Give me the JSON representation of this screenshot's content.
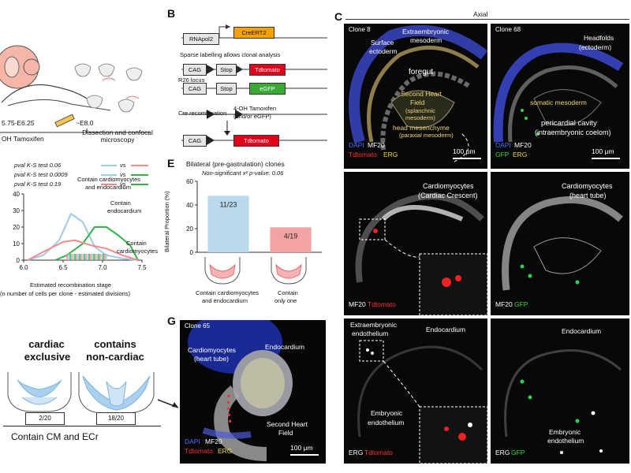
{
  "panelA": {
    "stage_range": "5.75-E6.25",
    "tamoxifen": "OH Tamoxifen",
    "e8": "~E8.0",
    "dissection": "Dissection and confocal microscopy",
    "pvals": [
      {
        "text": "pval K-S test 0.06",
        "c1": "#9ccbe9",
        "c2": "#f28b8b"
      },
      {
        "text": "pval K-S test 0.0009",
        "c1": "#9ccbe9",
        "c2": "#31b34a"
      },
      {
        "text": "pval K-S test 0.19",
        "c1": "#f28b8b",
        "c2": "#31b34a"
      }
    ],
    "vs": "vs"
  },
  "panelA_chart": {
    "chart_data": {
      "type": "line",
      "xlabel": "Estimated recombination stage",
      "xlabel2": "(n number of cells per clone - estimated divisions)",
      "xticks": [
        "6.0",
        "6.5",
        "7.0",
        "7.5"
      ],
      "xlim": [
        6.0,
        7.5
      ],
      "yticks": [
        "0",
        "10",
        "20",
        "30",
        "40"
      ],
      "ylim": [
        0,
        40
      ],
      "series": [
        {
          "name": "Contain cardiomyocytes and endocardium",
          "color": "#9ccbe9",
          "x": [
            6.05,
            6.25,
            6.45,
            6.6,
            6.75,
            6.9,
            7.05,
            7.25,
            7.45
          ],
          "y": [
            0,
            3,
            12,
            28,
            23,
            8,
            3,
            1,
            0
          ]
        },
        {
          "name": "Contain endocardium",
          "color": "#31b34a",
          "x": [
            6.4,
            6.55,
            6.75,
            6.9,
            7.05,
            7.2,
            7.35,
            7.45
          ],
          "y": [
            0,
            3,
            10,
            20,
            20,
            15,
            9,
            0
          ]
        },
        {
          "name": "Contain cardiomyocytes",
          "color": "#f28b8b",
          "x": [
            6.05,
            6.25,
            6.5,
            6.65,
            6.85,
            7.05,
            7.25,
            7.45
          ],
          "y": [
            0,
            5,
            11,
            12,
            9,
            7,
            3,
            0
          ]
        }
      ]
    },
    "ann1": "Contain cardiomyocytes",
    "ann1b": "and endocardium",
    "ann2": "Contain",
    "ann2b": "endocardium",
    "ann3": "Contain",
    "ann3b": "cardiomyocytes"
  },
  "panelBottomLeft": {
    "g1_title1": "cardiac",
    "g1_title2": "exclusive",
    "g2_title1": "contains",
    "g2_title2": "non-cardiac",
    "g1_count": "2/20",
    "g2_count": "18/20",
    "caption": "Contain CM and ECr"
  },
  "panelB": {
    "letter": "B",
    "rnapol2": "RNApol2",
    "creert2": "CreERT2",
    "sparse": "Sparse labelling allows clonal analysis",
    "cag": "CAG",
    "stop": "Stop",
    "tdtomato": "Tdtomato",
    "r26": "R26 locus",
    "egfp": "eGFP",
    "cre_rec": "Cre recombination",
    "tam": "4-OH Tamoxifen",
    "tam2": "(and/or eGFP)",
    "tdtomato2": "Tdtomato"
  },
  "panelE": {
    "letter": "E",
    "title": "Bilateral (pre-gastrulation) clones",
    "subtitle": "Non-significant x² p-value: 0.06",
    "chart_data": {
      "type": "bar",
      "categories": [
        "Contain cardiomyocytes and endocardium",
        "Contain only one"
      ],
      "values": [
        47.8,
        21.1
      ],
      "labels": [
        "11/23",
        "4/19"
      ],
      "colors": [
        "#b9d9ec",
        "#f3a3a3"
      ],
      "ylabel": "Bilateral Proportion (%)",
      "yticks": [
        "0",
        "20",
        "40",
        "60"
      ],
      "ylim": [
        0,
        60
      ]
    },
    "cat1a": "Contain cardiomyocytes",
    "cat1b": "and endocardium",
    "cat2a": "Contain",
    "cat2b": "only one"
  },
  "panelC": {
    "letter": "C",
    "axial": "Axial",
    "clone8": "Clone 8",
    "clone68": "Clone 68",
    "surface": "Surface",
    "ectoderm": "ectoderm",
    "extraemb": "Extraembryonic",
    "mesoderm": "mesoderm",
    "foregut": "foregut",
    "shf1": "Second Heart",
    "shf2": "Field",
    "shf3": "(splanchnic",
    "shf4": "mesoderm)",
    "headmes": "head mesenchyme",
    "paraxial": "(paraxial mesoderm)",
    "headfolds": "Headfolds",
    "ectoderm2": "(ectoderm)",
    "somatic": "somatic mesoderm",
    "pericard": "pericardial cavity",
    "intraemb": "(intraembryonic coelom)",
    "dapi": "DAPI",
    "mf20": "MF20",
    "tdt": "Tdtomato",
    "erg": "ERG",
    "gfp": "GFP",
    "scale": "100 μm",
    "cm_crescent1": "Cardiomyocytes",
    "cm_crescent2": "(Cardiac Crescent)",
    "cm_tube1": "Cardiomyocytes",
    "cm_tube2": "(heart tube)",
    "extraemb_endo1": "Extraembryonic",
    "extraemb_endo2": "endothelium",
    "endocardium": "Endocardium",
    "emb_endo1": "Embryonic",
    "emb_endo2": "endothelium"
  },
  "panelG": {
    "letter": "G",
    "clone": "Clone 65",
    "cm1": "Cardiomyocytes",
    "cm2": "(heart tube)",
    "endo": "Endocardium",
    "shf1": "Second Heart",
    "shf2": "Field",
    "dapi": "DAPI",
    "mf20": "MF20",
    "tdt": "Tdtomato",
    "erg": "ERG",
    "scale": "100 μm"
  }
}
